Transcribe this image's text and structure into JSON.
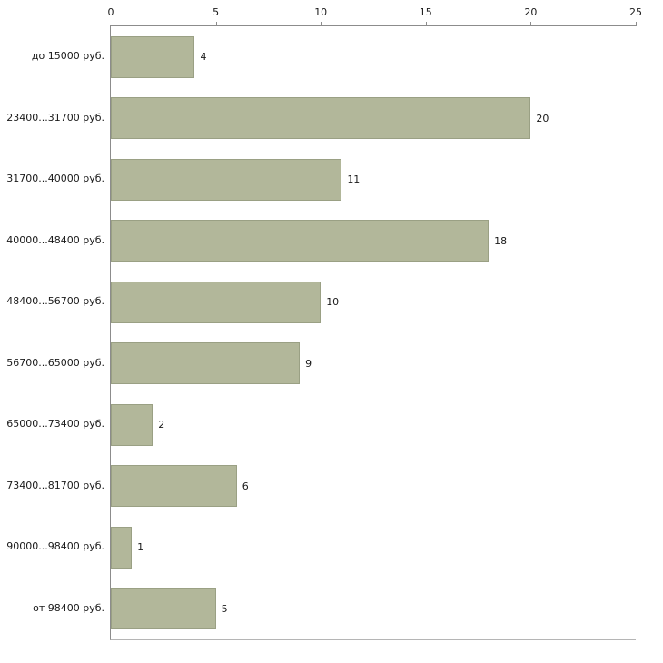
{
  "chart_data": {
    "type": "bar",
    "orientation": "horizontal",
    "title": "",
    "xlabel": "",
    "ylabel": "",
    "categories": [
      "до 15000 руб.",
      "23400...31700 руб.",
      "31700...40000 руб.",
      "40000...48400 руб.",
      "48400...56700 руб.",
      "56700...65000 руб.",
      "65000...73400 руб.",
      "73400...81700 руб.",
      "90000...98400 руб.",
      "от 98400 руб."
    ],
    "values": [
      4,
      20,
      11,
      18,
      10,
      9,
      2,
      6,
      1,
      5
    ],
    "xlim": [
      0,
      25
    ],
    "x_ticks": [
      0,
      5,
      10,
      15,
      20,
      25
    ],
    "x_axis_position": "top",
    "grid": false,
    "legend": false,
    "bar_color": "#b2b79a",
    "bar_border_color": "#9aa084",
    "axis_color": "#8c8c8c",
    "text_color": "#1a1a1a",
    "background_color": "#ffffff"
  }
}
